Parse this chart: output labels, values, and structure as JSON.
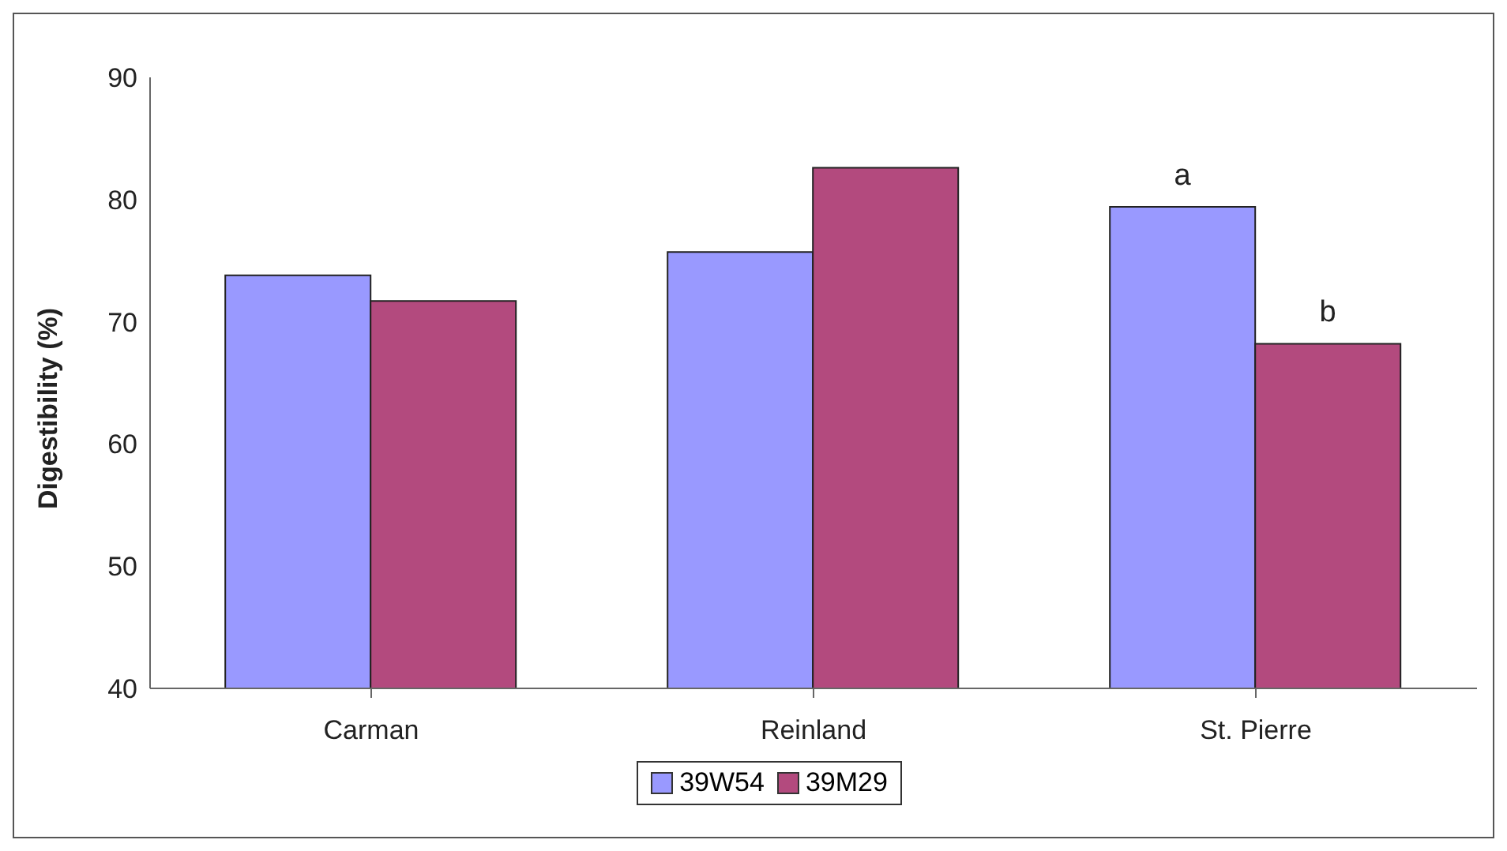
{
  "chart_data": {
    "type": "bar",
    "ylabel": "Digestibility (%)",
    "categories": [
      "Carman",
      "Reinland",
      "St. Pierre"
    ],
    "series": [
      {
        "name": "39W54",
        "color": "#9999ff",
        "values": [
          73.8,
          75.7,
          79.4
        ]
      },
      {
        "name": "39M29",
        "color": "#b34a7e",
        "values": [
          71.7,
          82.6,
          68.2
        ]
      }
    ],
    "ylim": [
      40,
      90
    ],
    "yticks": [
      40,
      50,
      60,
      70,
      80,
      90
    ],
    "grid": false,
    "legend": "bottom",
    "annotations": [
      {
        "text": "a",
        "x": "St. Pierre",
        "y": 79.4
      },
      {
        "text": "b",
        "x": "St. Pierre",
        "y": 68.2
      }
    ]
  }
}
